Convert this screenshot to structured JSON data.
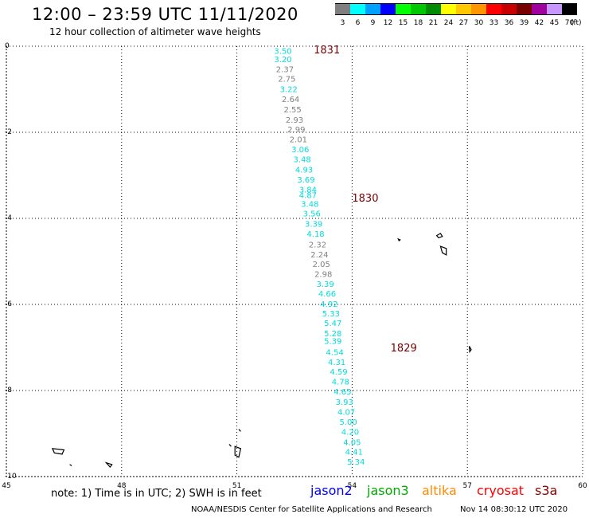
{
  "header": {
    "title": "12:00 – 23:59 UTC 11/11/2020",
    "subtitle": "12 hour collection of altimeter wave heights"
  },
  "color_scale": {
    "unit": "(ft)",
    "bins": [
      {
        "label": "3",
        "color": "#7f7f7f"
      },
      {
        "label": "6",
        "color": "#00ffff"
      },
      {
        "label": "9",
        "color": "#00a0ff"
      },
      {
        "label": "12",
        "color": "#0000ff"
      },
      {
        "label": "15",
        "color": "#00ff00"
      },
      {
        "label": "18",
        "color": "#00c800"
      },
      {
        "label": "21",
        "color": "#008c00"
      },
      {
        "label": "24",
        "color": "#ffff00"
      },
      {
        "label": "27",
        "color": "#ffc800"
      },
      {
        "label": "30",
        "color": "#ff9600"
      },
      {
        "label": "33",
        "color": "#ff0000"
      },
      {
        "label": "36",
        "color": "#c80000"
      },
      {
        "label": "39",
        "color": "#780000"
      },
      {
        "label": "42",
        "color": "#a000a0"
      },
      {
        "label": "45",
        "color": "#c896ff"
      },
      {
        "label": "70",
        "color": "#000000"
      }
    ]
  },
  "map": {
    "lon_ticks": [
      "45",
      "48",
      "51",
      "54",
      "57",
      "60"
    ],
    "lat_ticks": [
      "0",
      "-2",
      "-4",
      "-6",
      "-8",
      "-10"
    ],
    "lon_range": [
      45,
      60
    ],
    "lat_range": [
      -10,
      0
    ],
    "color_low": "#808080",
    "color_mid": "#00dcdc",
    "time_label_color": "#780000",
    "time_labels": [
      {
        "text": "1831",
        "lon": 53.0,
        "lat": -0.07
      },
      {
        "text": "1830",
        "lon": 54.0,
        "lat": -3.52
      },
      {
        "text": "1829",
        "lon": 55.0,
        "lat": -7.0
      }
    ],
    "track": [
      {
        "value": "3.50",
        "lon": 52.2,
        "lat": -0.1
      },
      {
        "value": "3.20",
        "lon": 52.2,
        "lat": -0.3
      },
      {
        "value": "2.37",
        "lon": 52.25,
        "lat": -0.53
      },
      {
        "value": "2.75",
        "lon": 52.3,
        "lat": -0.75
      },
      {
        "value": "3.22",
        "lon": 52.35,
        "lat": -0.99
      },
      {
        "value": "2.64",
        "lon": 52.4,
        "lat": -1.22
      },
      {
        "value": "2.55",
        "lon": 52.45,
        "lat": -1.46
      },
      {
        "value": "2.93",
        "lon": 52.5,
        "lat": -1.7
      },
      {
        "value": "2.99",
        "lon": 52.55,
        "lat": -1.93
      },
      {
        "value": "2.01",
        "lon": 52.6,
        "lat": -2.16
      },
      {
        "value": "3.06",
        "lon": 52.65,
        "lat": -2.39
      },
      {
        "value": "3.48",
        "lon": 52.7,
        "lat": -2.62
      },
      {
        "value": "4.93",
        "lon": 52.75,
        "lat": -2.86
      },
      {
        "value": "3.69",
        "lon": 52.8,
        "lat": -3.09
      },
      {
        "value": "3.84",
        "lon": 52.85,
        "lat": -3.32
      },
      {
        "value": "4.87",
        "lon": 52.85,
        "lat": -3.45
      },
      {
        "value": "3.48",
        "lon": 52.9,
        "lat": -3.66
      },
      {
        "value": "3.56",
        "lon": 52.95,
        "lat": -3.88
      },
      {
        "value": "3.39",
        "lon": 53.0,
        "lat": -4.12
      },
      {
        "value": "4.18",
        "lon": 53.05,
        "lat": -4.35
      },
      {
        "value": "2.32",
        "lon": 53.1,
        "lat": -4.6
      },
      {
        "value": "2.24",
        "lon": 53.15,
        "lat": -4.83
      },
      {
        "value": "2.05",
        "lon": 53.2,
        "lat": -5.06
      },
      {
        "value": "2.98",
        "lon": 53.25,
        "lat": -5.29
      },
      {
        "value": "3.39",
        "lon": 53.3,
        "lat": -5.52
      },
      {
        "value": "4.66",
        "lon": 53.35,
        "lat": -5.74
      },
      {
        "value": "4.92",
        "lon": 53.4,
        "lat": -5.98
      },
      {
        "value": "5.33",
        "lon": 53.45,
        "lat": -6.2
      },
      {
        "value": "5.47",
        "lon": 53.5,
        "lat": -6.43
      },
      {
        "value": "5.28",
        "lon": 53.5,
        "lat": -6.67
      },
      {
        "value": "5.39",
        "lon": 53.5,
        "lat": -6.84
      },
      {
        "value": "4.54",
        "lon": 53.55,
        "lat": -7.1
      },
      {
        "value": "4.31",
        "lon": 53.6,
        "lat": -7.33
      },
      {
        "value": "4.59",
        "lon": 53.65,
        "lat": -7.56
      },
      {
        "value": "4.78",
        "lon": 53.7,
        "lat": -7.79
      },
      {
        "value": "4.65",
        "lon": 53.75,
        "lat": -8.02
      },
      {
        "value": "3.93",
        "lon": 53.8,
        "lat": -8.26
      },
      {
        "value": "4.07",
        "lon": 53.85,
        "lat": -8.49
      },
      {
        "value": "5.00",
        "lon": 53.9,
        "lat": -8.72
      },
      {
        "value": "4.20",
        "lon": 53.95,
        "lat": -8.95
      },
      {
        "value": "4.05",
        "lon": 54.0,
        "lat": -9.19
      },
      {
        "value": "4.41",
        "lon": 54.05,
        "lat": -9.42
      },
      {
        "value": "5.34",
        "lon": 54.1,
        "lat": -9.65
      }
    ],
    "islands": [
      {
        "name": "seychelles-a",
        "points": [
          [
            56.2,
            -4.4
          ],
          [
            56.3,
            -4.35
          ],
          [
            56.35,
            -4.42
          ],
          [
            56.25,
            -4.45
          ]
        ]
      },
      {
        "name": "seychelles-b",
        "points": [
          [
            56.3,
            -4.65
          ],
          [
            56.45,
            -4.7
          ],
          [
            56.45,
            -4.85
          ],
          [
            56.35,
            -4.8
          ]
        ]
      },
      {
        "name": "seychelles-c",
        "points": [
          [
            55.2,
            -4.48
          ],
          [
            55.25,
            -4.5
          ],
          [
            55.22,
            -4.52
          ]
        ]
      },
      {
        "name": "agalega",
        "points": [
          [
            57.05,
            -6.97
          ],
          [
            57.1,
            -7.05
          ],
          [
            57.06,
            -7.1
          ]
        ]
      },
      {
        "name": "farquhar",
        "points": [
          [
            50.95,
            -9.3
          ],
          [
            51.1,
            -9.35
          ],
          [
            51.05,
            -9.55
          ],
          [
            50.95,
            -9.5
          ]
        ]
      },
      {
        "name": "farquhar-b",
        "points": [
          [
            51.05,
            -8.9
          ],
          [
            51.1,
            -8.95
          ]
        ]
      },
      {
        "name": "aldabra",
        "points": [
          [
            46.2,
            -9.35
          ],
          [
            46.5,
            -9.38
          ],
          [
            46.45,
            -9.48
          ],
          [
            46.25,
            -9.45
          ]
        ]
      },
      {
        "name": "cosmoledo",
        "points": [
          [
            47.6,
            -9.68
          ],
          [
            47.75,
            -9.72
          ],
          [
            47.7,
            -9.78
          ]
        ]
      },
      {
        "name": "astove",
        "points": [
          [
            46.65,
            -9.72
          ],
          [
            46.7,
            -9.75
          ]
        ]
      },
      {
        "name": "providence",
        "points": [
          [
            50.8,
            -9.25
          ],
          [
            50.85,
            -9.3
          ]
        ]
      }
    ]
  },
  "legend": {
    "note": "note:  1) Time is in UTC;  2) SWH is in feet",
    "satellites": [
      {
        "label": "jason2",
        "color": "#0000ff"
      },
      {
        "label": "jason3",
        "color": "#00aa00"
      },
      {
        "label": "altika",
        "color": "#ff8c00"
      },
      {
        "label": "cryosat",
        "color": "#ff0000"
      },
      {
        "label": "s3a",
        "color": "#8b0000"
      }
    ]
  },
  "footer": {
    "credit": "NOAA/NESDIS Center for Satellite Applications and Research",
    "timestamp": "Nov 14 08:30:12 UTC 2020"
  }
}
